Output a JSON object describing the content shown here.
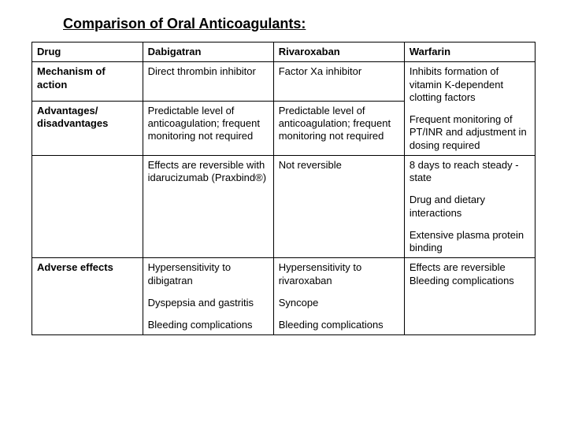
{
  "title": "Comparison of Oral Anticoagulants:",
  "headers": {
    "c0": "Drug",
    "c1": "Dabigatran",
    "c2": "Rivaroxaban",
    "c3": "Warfarin"
  },
  "rows": {
    "mechanism": {
      "label": "Mechanism of action",
      "dabigatran": "Direct thrombin inhibitor",
      "rivaroxaban": "Factor Xa inhibitor",
      "warfarin": "Inhibits formation of vitamin K-dependent clotting factors"
    },
    "adv1": {
      "label": "Advantages/ disadvantages",
      "dabigatran": "Predictable level of anticoagulation; frequent monitoring not required",
      "rivaroxaban": "Predictable level of anticoagulation; frequent monitoring not required",
      "warfarin": "Frequent monitoring of PT/INR and adjustment in dosing required"
    },
    "adv2": {
      "dabigatran": "Effects are reversible with idarucizumab (Praxbind®)",
      "rivaroxaban": "Not reversible",
      "warfarin_a": "8 days to reach steady -state",
      "warfarin_b": "Drug  and dietary interactions",
      "warfarin_c": "Extensive plasma protein binding"
    },
    "adverse": {
      "label": "Adverse effects",
      "dabigatran_a": "Hypersensitivity to dibigatran",
      "dabigatran_b": "Dyspepsia and gastritis",
      "dabigatran_c": "Bleeding complications",
      "rivaroxaban_a": "Hypersensitivity to rivaroxaban",
      "rivaroxaban_b": "Syncope",
      "rivaroxaban_c": "Bleeding complications",
      "warfarin": "Effects are reversible Bleeding complications"
    }
  }
}
